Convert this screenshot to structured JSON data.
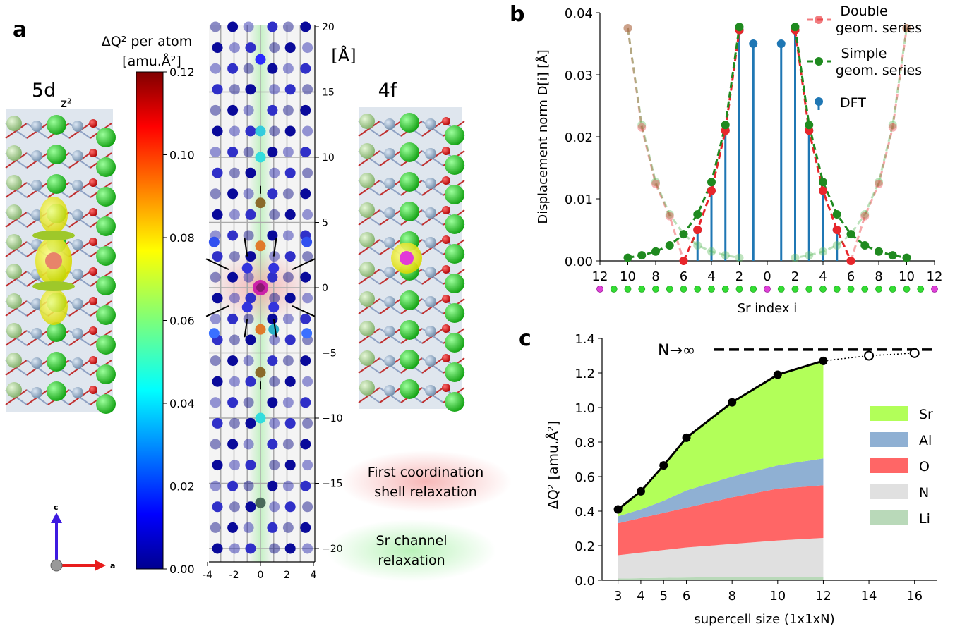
{
  "panel_a": {
    "letter": "a",
    "orbital_left": "5d",
    "orbital_left_sub": "z²",
    "orbital_right": "4f",
    "colorbar_title_1": "ΔQ² per atom",
    "colorbar_title_2": "[amu.Å²]",
    "colorbar_ticks": [
      "0.00",
      "0.02",
      "0.04",
      "0.06",
      "0.08",
      "0.10",
      "0.12"
    ],
    "unit_label": "[Å]",
    "y_ticks": [
      "20",
      "15",
      "10",
      "5",
      "0",
      "−5",
      "−10",
      "−15",
      "−20"
    ],
    "x_ticks": [
      "-4",
      "-2",
      "0",
      "2",
      "4"
    ],
    "legend_red_1": "First coordination",
    "legend_red_2": "shell relaxation",
    "legend_green_1": "Sr channel",
    "legend_green_2": "relaxation",
    "axis_c": "c",
    "axis_a": "a"
  },
  "chart_data": [
    {
      "panel": "b",
      "type": "line",
      "ylabel": "Displacement norm D[i] [Å]",
      "xlabel": "Sr index i",
      "xtick_labels": [
        "12",
        "10",
        "8",
        "6",
        "4",
        "2",
        "0",
        "2",
        "4",
        "6",
        "8",
        "10",
        "12"
      ],
      "ylim": [
        0,
        0.04
      ],
      "yticks": [
        "0.00",
        "0.01",
        "0.02",
        "0.03",
        "0.04"
      ],
      "series": [
        {
          "name": "Double geom. series",
          "color": "#e8262b",
          "x": [
            -10,
            -9,
            -8,
            -7,
            -6,
            -5,
            -4,
            -3,
            -2,
            -1,
            1,
            2,
            3,
            4,
            5,
            6,
            7,
            8,
            9,
            10
          ],
          "values": [
            0.0375,
            0.0215,
            0.0124,
            0.0072,
            0.0,
            0.005,
            0.0113,
            0.021,
            0.0372,
            null,
            null,
            0.0372,
            0.021,
            0.0113,
            0.005,
            0.0,
            0.0072,
            0.0124,
            0.0215,
            0.0375
          ]
        },
        {
          "name": "Simple geom. series",
          "color": "#1f8a1f",
          "x": [
            -10,
            -9,
            -8,
            -7,
            -6,
            -5,
            -4,
            -3,
            -2,
            2,
            3,
            4,
            5,
            6,
            7,
            8,
            9,
            10
          ],
          "values": [
            0.0005,
            0.0009,
            0.0015,
            0.0025,
            0.0043,
            0.0075,
            0.0127,
            0.0219,
            0.0377,
            0.0377,
            0.0219,
            0.0127,
            0.0075,
            0.0043,
            0.0025,
            0.0015,
            0.0009,
            0.0005
          ]
        },
        {
          "name": "DFT",
          "color": "#1f77b4",
          "x": [
            -5,
            -4,
            -3,
            -2,
            -1,
            1,
            2,
            3,
            4,
            5
          ],
          "values": [
            0.005,
            0.0113,
            0.021,
            0.0372,
            0.035,
            0.035,
            0.0372,
            0.021,
            0.0113,
            0.005
          ]
        }
      ],
      "legend": [
        "Double",
        "geom. series",
        "Simple",
        "geom. series",
        "DFT"
      ],
      "legend_placement": "top-right"
    },
    {
      "panel": "c",
      "type": "area",
      "ylabel": "ΔQ² [amu.Å²]",
      "xlabel": "supercell size (1x1xN)",
      "xticks": [
        3,
        4,
        5,
        6,
        8,
        10,
        12,
        14,
        16
      ],
      "ylim": [
        0,
        1.4
      ],
      "yticks": [
        "0.0",
        "0.2",
        "0.4",
        "0.6",
        "0.8",
        "1.0",
        "1.2",
        "1.4"
      ],
      "limit_label": "N→∞",
      "limit_value": 1.335,
      "total": {
        "x": [
          3,
          4,
          5,
          6,
          8,
          10,
          12
        ],
        "values": [
          0.41,
          0.515,
          0.665,
          0.825,
          1.03,
          1.19,
          1.27
        ]
      },
      "extrapolated": {
        "x": [
          14,
          16
        ],
        "values": [
          1.3,
          1.315
        ]
      },
      "stack_order_bottom_to_top": [
        "Li",
        "N",
        "O",
        "Al",
        "Sr"
      ],
      "cumulative": {
        "Li": [
          0.01,
          0.012,
          0.014,
          0.016,
          0.018,
          0.02,
          0.02
        ],
        "N": [
          0.145,
          0.16,
          0.175,
          0.19,
          0.21,
          0.23,
          0.245
        ],
        "O": [
          0.33,
          0.36,
          0.39,
          0.42,
          0.48,
          0.53,
          0.55
        ],
        "Al": [
          0.37,
          0.41,
          0.46,
          0.52,
          0.6,
          0.665,
          0.705
        ],
        "Sr": [
          0.41,
          0.515,
          0.665,
          0.825,
          1.03,
          1.19,
          1.27
        ]
      },
      "legend": [
        {
          "name": "Sr",
          "color": "#b2ff59"
        },
        {
          "name": "Al",
          "color": "#8fb0d3"
        },
        {
          "name": "O",
          "color": "#ff6666"
        },
        {
          "name": "N",
          "color": "#e0e0e0"
        },
        {
          "name": "Li",
          "color": "#b9d9b9"
        }
      ],
      "legend_placement": "right"
    }
  ],
  "panel_b_letter": "b",
  "panel_c_letter": "c"
}
